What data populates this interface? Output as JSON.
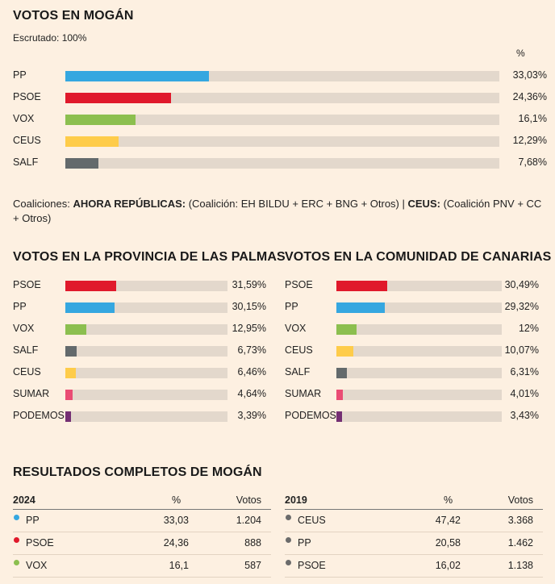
{
  "colors": {
    "PP": "#35a7e0",
    "PSOE": "#e0192b",
    "VOX": "#8cbf4f",
    "CEUS": "#fecc4a",
    "SALF": "#636a6c",
    "SUMAR": "#ea4c74",
    "PODEMOS": "#742f73",
    "grey": "#6b6b6b"
  },
  "chart_data": [
    {
      "type": "bar",
      "title": "VOTOS EN MOGÁN",
      "subtitle": "Escrutado: 100%",
      "unit_label": "%",
      "categories": [
        "PP",
        "PSOE",
        "VOX",
        "CEUS",
        "SALF"
      ],
      "values": [
        33.03,
        24.36,
        16.1,
        12.29,
        7.68
      ],
      "value_labels": [
        "33,03%",
        "24,36%",
        "16,1%",
        "12,29%",
        "7,68%"
      ],
      "xlim": [
        0,
        100
      ]
    },
    {
      "type": "bar",
      "title": "VOTOS EN LA PROVINCIA DE LAS PALMAS",
      "categories": [
        "PSOE",
        "PP",
        "VOX",
        "SALF",
        "CEUS",
        "SUMAR",
        "PODEMOS"
      ],
      "values": [
        31.59,
        30.15,
        12.95,
        6.73,
        6.46,
        4.64,
        3.39
      ],
      "value_labels": [
        "31,59%",
        "30,15%",
        "12,95%",
        "6,73%",
        "6,46%",
        "4,64%",
        "3,39%"
      ],
      "xlim": [
        0,
        100
      ]
    },
    {
      "type": "bar",
      "title": "VOTOS EN LA COMUNIDAD DE CANARIAS",
      "categories": [
        "PSOE",
        "PP",
        "VOX",
        "CEUS",
        "SALF",
        "SUMAR",
        "PODEMOS"
      ],
      "values": [
        30.49,
        29.32,
        12,
        10.07,
        6.31,
        4.01,
        3.43
      ],
      "value_labels": [
        "30,49%",
        "29,32%",
        "12%",
        "10,07%",
        "6,31%",
        "4,01%",
        "3,43%"
      ],
      "xlim": [
        0,
        100
      ]
    },
    {
      "type": "table",
      "title": "RESULTADOS COMPLETOS DE MOGÁN",
      "year": "2024",
      "columns": [
        "%",
        "Votos"
      ],
      "rows": [
        {
          "party": "PP",
          "pct": "33,03",
          "votes": "1.204"
        },
        {
          "party": "PSOE",
          "pct": "24,36",
          "votes": "888"
        },
        {
          "party": "VOX",
          "pct": "16,1",
          "votes": "587"
        }
      ]
    },
    {
      "type": "table",
      "year": "2019",
      "columns": [
        "%",
        "Votos"
      ],
      "rows": [
        {
          "party": "CEUS",
          "pct": "47,42",
          "votes": "3.368"
        },
        {
          "party": "PP",
          "pct": "20,58",
          "votes": "1.462"
        },
        {
          "party": "PSOE",
          "pct": "16,02",
          "votes": "1.138"
        }
      ]
    }
  ],
  "coalitions": {
    "prefix": "Coaliciones:",
    "name1": "AHORA REPÚBLICAS:",
    "text1": "(Coalición: EH BILDU + ERC + BNG + Otros) |",
    "name2": "CEUS:",
    "text2": "(Coalición PNV + CC + Otros)"
  }
}
